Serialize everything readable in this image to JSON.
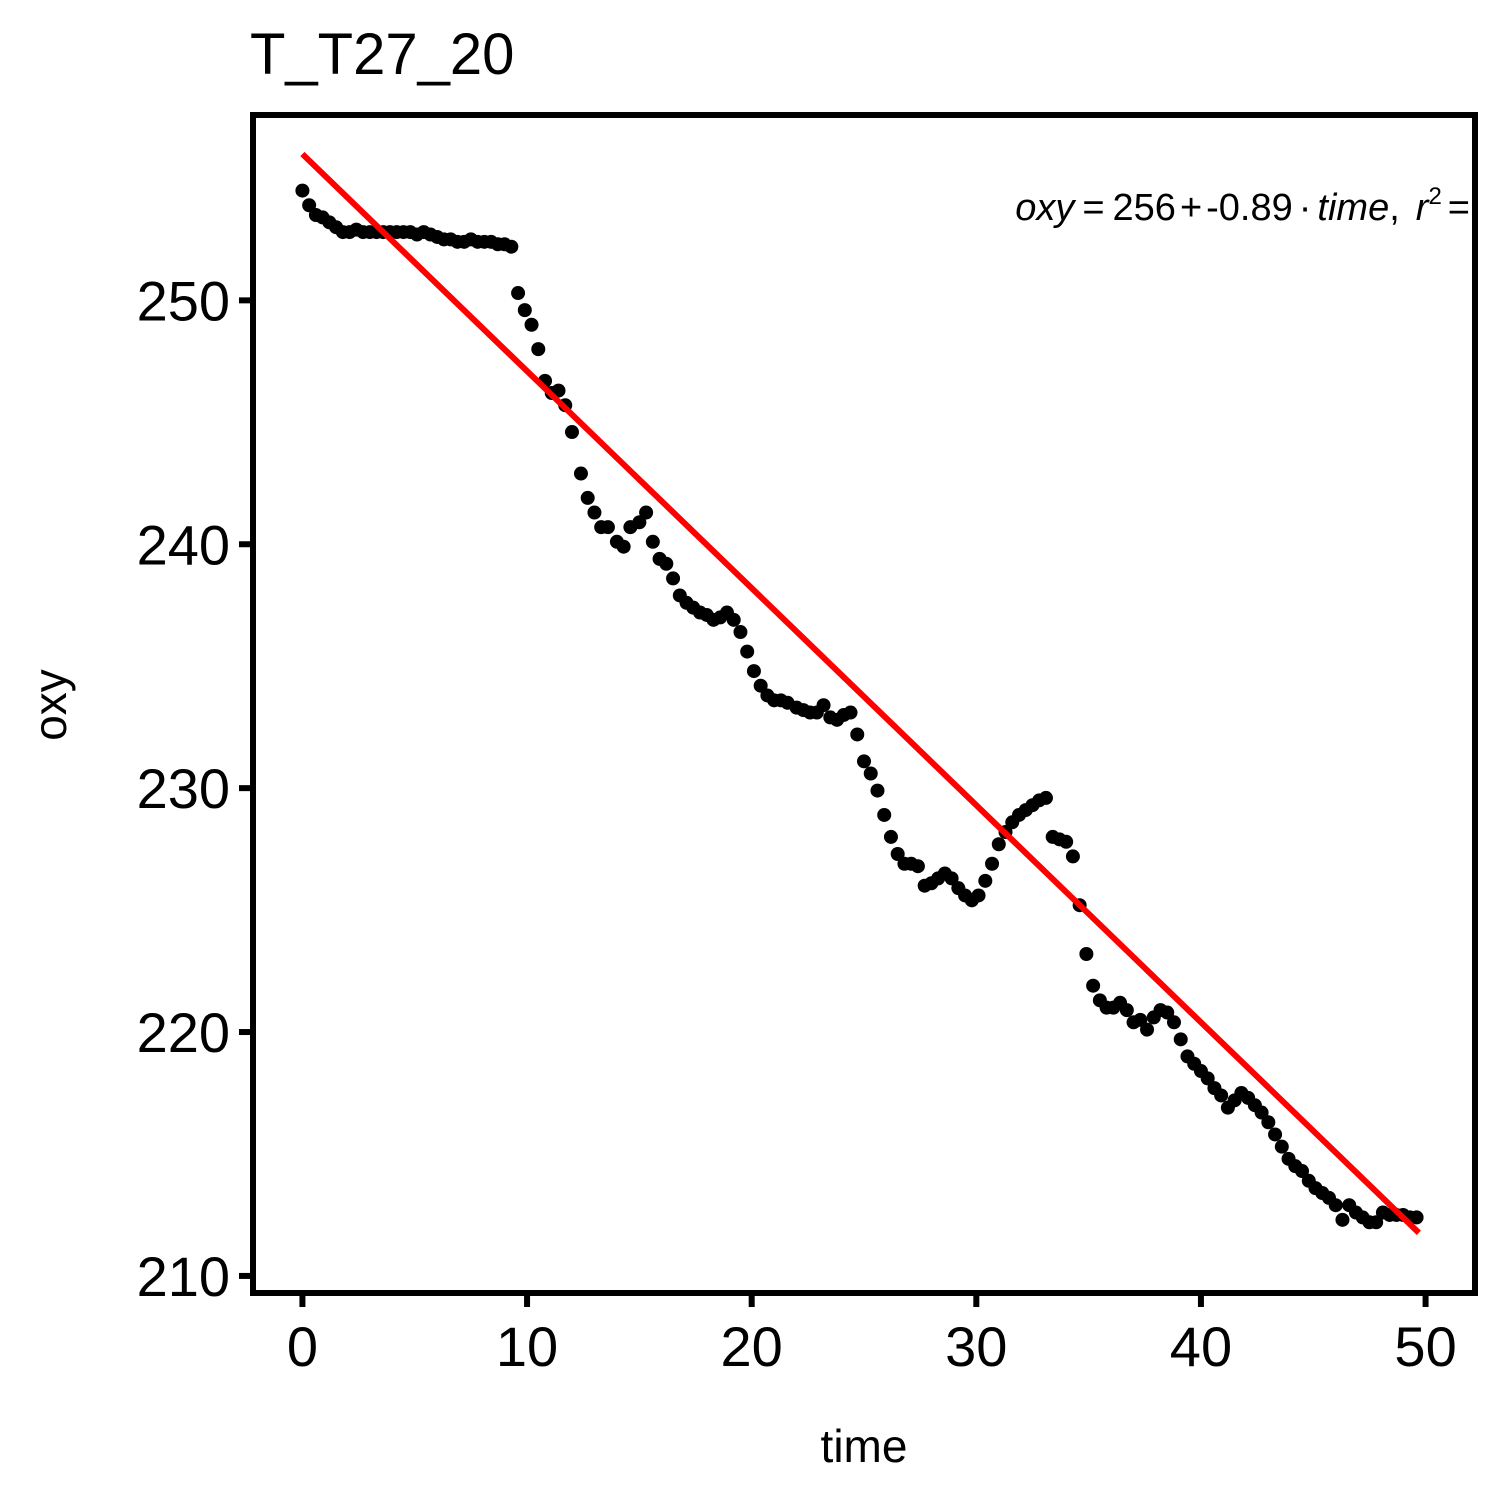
{
  "chart_data": {
    "type": "scatter",
    "title": "T_T27_20",
    "xlabel": "time",
    "ylabel": "oxy",
    "xlim": [
      -2.2,
      52.2
    ],
    "ylim": [
      209.3,
      257.6
    ],
    "x_ticks": [
      0,
      10,
      20,
      30,
      40,
      50
    ],
    "x_tick_labels": [
      "0",
      "10",
      "20",
      "30",
      "40",
      "50"
    ],
    "y_ticks": [
      210,
      220,
      230,
      240,
      250
    ],
    "y_tick_labels": [
      "210",
      "220",
      "230",
      "240",
      "250"
    ],
    "grid": false,
    "legend": "none",
    "colors": {
      "points": "#000000",
      "fit_line": "#ff0000",
      "frame": "#000000"
    },
    "annotation": {
      "lhs": "oxy",
      "equals": "=",
      "intercept": "256",
      "plus": "+",
      "slope": "-0.89",
      "dot": "·",
      "var": "time",
      "comma": ",",
      "r2_symbol": "r",
      "r2_exp": "2",
      "r2_equals": "="
    },
    "fit_line": {
      "intercept": 256,
      "slope": -0.89,
      "x_range": [
        0,
        49.7
      ]
    },
    "series": [
      {
        "x": [
          0.0,
          0.3,
          0.6,
          0.9,
          1.2,
          1.5,
          1.8,
          2.1,
          2.4,
          2.7,
          3.0,
          3.3,
          3.6,
          3.9,
          4.2,
          4.5,
          4.8,
          5.1,
          5.4,
          5.7,
          6.0,
          6.3,
          6.6,
          6.9,
          7.2,
          7.5,
          7.8,
          8.1,
          8.4,
          8.7,
          9.0,
          9.3,
          9.6,
          9.9,
          10.2,
          10.5,
          10.8,
          11.1,
          11.4,
          11.7,
          12.0,
          12.4,
          12.7,
          13.0,
          13.3,
          13.6,
          14.0,
          14.3,
          14.6,
          15.0,
          15.3,
          15.6,
          15.9,
          16.2,
          16.5,
          16.8,
          17.1,
          17.4,
          17.7,
          18.0,
          18.3,
          18.6,
          18.9,
          19.2,
          19.5,
          19.8,
          20.1,
          20.4,
          20.7,
          21.0,
          21.3,
          21.6,
          22.0,
          22.3,
          22.6,
          22.9,
          23.2,
          23.5,
          23.8,
          24.1,
          24.4,
          24.7,
          25.0,
          25.3,
          25.6,
          25.9,
          26.2,
          26.5,
          26.8,
          27.1,
          27.4,
          27.7,
          28.0,
          28.3,
          28.6,
          28.9,
          29.2,
          29.5,
          29.8,
          30.1,
          30.4,
          30.7,
          31.0,
          31.3,
          31.6,
          31.9,
          32.2,
          32.5,
          32.8,
          33.1,
          33.4,
          33.7,
          34.0,
          34.3,
          34.6,
          34.9,
          35.2,
          35.5,
          35.8,
          36.1,
          36.4,
          36.7,
          37.0,
          37.3,
          37.6,
          37.9,
          38.2,
          38.5,
          38.8,
          39.1,
          39.4,
          39.7,
          40.0,
          40.3,
          40.6,
          40.9,
          41.2,
          41.5,
          41.8,
          42.1,
          42.4,
          42.7,
          43.0,
          43.3,
          43.6,
          43.9,
          44.2,
          44.5,
          44.8,
          45.1,
          45.4,
          45.7,
          46.0,
          46.3,
          46.6,
          46.9,
          47.2,
          47.5,
          47.8,
          48.1,
          48.4,
          48.7,
          49.0,
          49.3,
          49.6
        ],
        "y": [
          254.5,
          253.9,
          253.5,
          253.4,
          253.2,
          253.0,
          252.8,
          252.8,
          252.9,
          252.8,
          252.8,
          252.8,
          252.8,
          252.8,
          252.8,
          252.8,
          252.8,
          252.7,
          252.8,
          252.7,
          252.6,
          252.5,
          252.5,
          252.4,
          252.4,
          252.5,
          252.4,
          252.4,
          252.4,
          252.3,
          252.3,
          252.2,
          250.3,
          249.6,
          249.0,
          248.0,
          246.7,
          246.2,
          246.3,
          245.7,
          244.6,
          242.9,
          241.9,
          241.3,
          240.7,
          240.7,
          240.1,
          239.9,
          240.7,
          240.9,
          241.3,
          240.1,
          239.4,
          239.2,
          238.6,
          237.9,
          237.6,
          237.4,
          237.2,
          237.1,
          236.9,
          237.0,
          237.2,
          236.9,
          236.4,
          235.6,
          234.8,
          234.2,
          233.8,
          233.6,
          233.6,
          233.5,
          233.3,
          233.2,
          233.1,
          233.1,
          233.4,
          232.9,
          232.8,
          233.0,
          233.1,
          232.2,
          231.1,
          230.6,
          229.9,
          228.9,
          228.0,
          227.3,
          226.9,
          226.9,
          226.8,
          226.0,
          226.1,
          226.3,
          226.5,
          226.3,
          225.9,
          225.6,
          225.4,
          225.6,
          226.2,
          226.9,
          227.7,
          228.2,
          228.6,
          228.9,
          229.1,
          229.3,
          229.5,
          229.6,
          228.0,
          227.9,
          227.8,
          227.2,
          225.2,
          223.2,
          221.9,
          221.3,
          221.0,
          221.0,
          221.2,
          220.9,
          220.4,
          220.5,
          220.1,
          220.6,
          220.9,
          220.8,
          220.4,
          219.7,
          219.0,
          218.7,
          218.4,
          218.1,
          217.7,
          217.4,
          216.9,
          217.2,
          217.5,
          217.3,
          217.0,
          216.7,
          216.3,
          215.8,
          215.3,
          214.8,
          214.5,
          214.3,
          213.9,
          213.6,
          213.4,
          213.2,
          212.9,
          212.3,
          212.9,
          212.6,
          212.4,
          212.2,
          212.2,
          212.6,
          212.5,
          212.5,
          212.5,
          212.4,
          212.4
        ]
      }
    ]
  }
}
